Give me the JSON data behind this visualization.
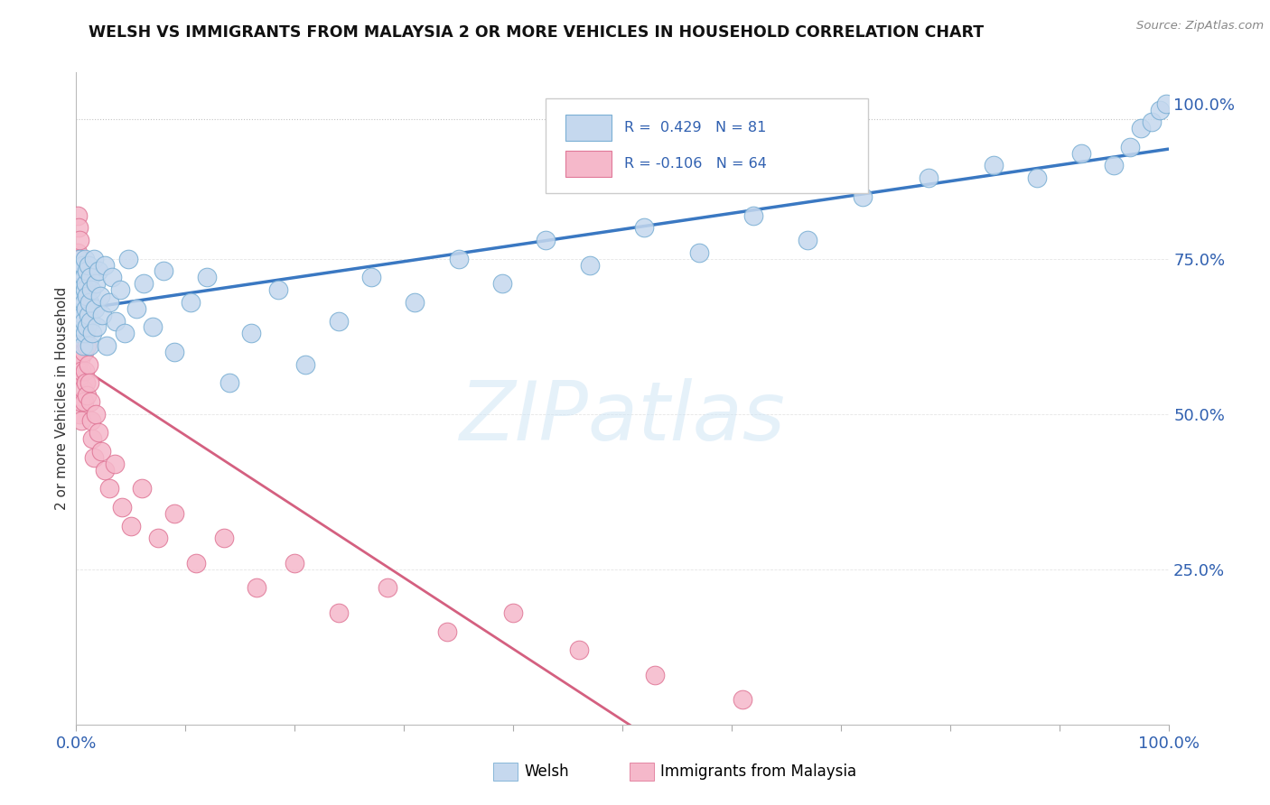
{
  "title": "WELSH VS IMMIGRANTS FROM MALAYSIA 2 OR MORE VEHICLES IN HOUSEHOLD CORRELATION CHART",
  "source": "Source: ZipAtlas.com",
  "ylabel": "2 or more Vehicles in Household",
  "r_welsh": 0.429,
  "n_welsh": 81,
  "r_malaysia": -0.106,
  "n_malaysia": 64,
  "legend_welsh": "Welsh",
  "legend_malaysia": "Immigrants from Malaysia",
  "watermark": "ZIPatlas",
  "blue_fill": "#c5d8ee",
  "blue_edge": "#7aafd4",
  "pink_fill": "#f5b8ca",
  "pink_edge": "#e07898",
  "trend_blue": "#3a78c2",
  "trend_pink": "#d46080",
  "trend_pink_dashed": "#dda0b0",
  "ytick_vals": [
    0.25,
    0.5,
    0.75,
    1.0
  ],
  "ytick_labels": [
    "25.0%",
    "50.0%",
    "75.0%",
    "100.0%"
  ],
  "welsh_x": [
    0.001,
    0.002,
    0.002,
    0.003,
    0.003,
    0.003,
    0.004,
    0.004,
    0.005,
    0.005,
    0.005,
    0.006,
    0.006,
    0.006,
    0.007,
    0.007,
    0.007,
    0.008,
    0.008,
    0.008,
    0.009,
    0.009,
    0.01,
    0.01,
    0.01,
    0.011,
    0.011,
    0.012,
    0.012,
    0.013,
    0.013,
    0.014,
    0.015,
    0.016,
    0.017,
    0.018,
    0.019,
    0.02,
    0.022,
    0.024,
    0.026,
    0.028,
    0.03,
    0.033,
    0.036,
    0.04,
    0.044,
    0.048,
    0.055,
    0.062,
    0.07,
    0.08,
    0.09,
    0.105,
    0.12,
    0.14,
    0.16,
    0.185,
    0.21,
    0.24,
    0.27,
    0.31,
    0.35,
    0.39,
    0.43,
    0.47,
    0.52,
    0.57,
    0.62,
    0.67,
    0.72,
    0.78,
    0.84,
    0.88,
    0.92,
    0.95,
    0.965,
    0.975,
    0.985,
    0.992,
    0.998
  ],
  "welsh_y": [
    0.68,
    0.72,
    0.65,
    0.7,
    0.63,
    0.75,
    0.67,
    0.71,
    0.64,
    0.73,
    0.69,
    0.66,
    0.74,
    0.61,
    0.68,
    0.72,
    0.65,
    0.7,
    0.63,
    0.75,
    0.67,
    0.71,
    0.64,
    0.73,
    0.69,
    0.66,
    0.74,
    0.61,
    0.68,
    0.72,
    0.65,
    0.7,
    0.63,
    0.75,
    0.67,
    0.71,
    0.64,
    0.73,
    0.69,
    0.66,
    0.74,
    0.61,
    0.68,
    0.72,
    0.65,
    0.7,
    0.63,
    0.75,
    0.67,
    0.71,
    0.64,
    0.73,
    0.6,
    0.68,
    0.72,
    0.55,
    0.63,
    0.7,
    0.58,
    0.65,
    0.72,
    0.68,
    0.75,
    0.71,
    0.78,
    0.74,
    0.8,
    0.76,
    0.82,
    0.78,
    0.85,
    0.88,
    0.9,
    0.88,
    0.92,
    0.9,
    0.93,
    0.96,
    0.97,
    0.99,
    1.0
  ],
  "malaysia_x": [
    0.001,
    0.001,
    0.001,
    0.001,
    0.001,
    0.002,
    0.002,
    0.002,
    0.002,
    0.002,
    0.002,
    0.003,
    0.003,
    0.003,
    0.003,
    0.003,
    0.004,
    0.004,
    0.004,
    0.004,
    0.005,
    0.005,
    0.005,
    0.005,
    0.006,
    0.006,
    0.006,
    0.007,
    0.007,
    0.007,
    0.008,
    0.008,
    0.009,
    0.009,
    0.01,
    0.01,
    0.011,
    0.012,
    0.013,
    0.014,
    0.015,
    0.016,
    0.018,
    0.02,
    0.023,
    0.026,
    0.03,
    0.035,
    0.042,
    0.05,
    0.06,
    0.075,
    0.09,
    0.11,
    0.135,
    0.165,
    0.2,
    0.24,
    0.285,
    0.34,
    0.4,
    0.46,
    0.53,
    0.61
  ],
  "malaysia_y": [
    0.82,
    0.73,
    0.65,
    0.58,
    0.76,
    0.8,
    0.71,
    0.64,
    0.57,
    0.75,
    0.68,
    0.78,
    0.7,
    0.63,
    0.56,
    0.5,
    0.74,
    0.66,
    0.59,
    0.52,
    0.72,
    0.64,
    0.57,
    0.49,
    0.7,
    0.62,
    0.54,
    0.68,
    0.6,
    0.52,
    0.65,
    0.57,
    0.63,
    0.55,
    0.61,
    0.53,
    0.58,
    0.55,
    0.52,
    0.49,
    0.46,
    0.43,
    0.5,
    0.47,
    0.44,
    0.41,
    0.38,
    0.42,
    0.35,
    0.32,
    0.38,
    0.3,
    0.34,
    0.26,
    0.3,
    0.22,
    0.26,
    0.18,
    0.22,
    0.15,
    0.18,
    0.12,
    0.08,
    0.04
  ]
}
